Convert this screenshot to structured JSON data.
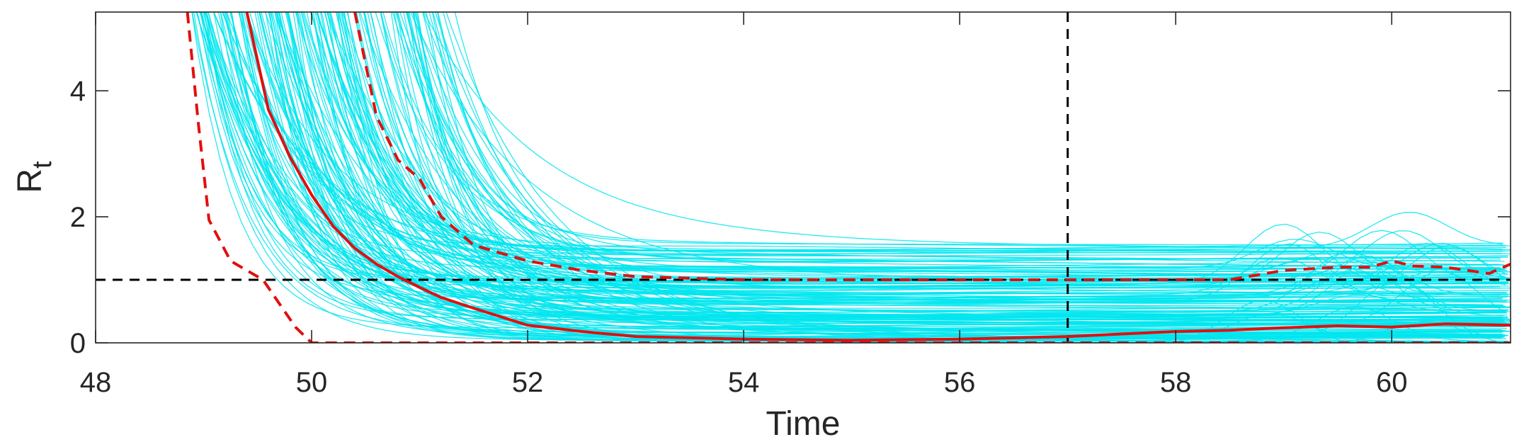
{
  "chart_data": {
    "type": "line",
    "title": "",
    "xlabel": "Time",
    "ylabel": "R",
    "ylabel_subscript": "t",
    "xlim": [
      48,
      61.1
    ],
    "ylim": [
      0,
      5.25
    ],
    "xticks": [
      48,
      50,
      52,
      54,
      56,
      58,
      60
    ],
    "yticks": [
      0,
      2,
      4
    ],
    "grid": false,
    "legend": "none",
    "colors": {
      "samples": "#00e5ee",
      "median": "#e01010",
      "bounds": "#e01010",
      "reference": "#000000",
      "axes": "#262626"
    },
    "reference_lines": {
      "horizontal_y": 1,
      "vertical_x": 57
    },
    "series": [
      {
        "role": "median",
        "style": "solid",
        "x": [
          49.4,
          49.6,
          49.8,
          50.0,
          50.2,
          50.4,
          50.6,
          50.8,
          51.0,
          51.2,
          51.5,
          52.0,
          52.5,
          53.0,
          54.0,
          55.0,
          56.0,
          57.0,
          57.5,
          58.0,
          58.5,
          59.0,
          59.5,
          60.0,
          60.5,
          61.1
        ],
        "y": [
          5.25,
          3.7,
          2.95,
          2.35,
          1.85,
          1.5,
          1.25,
          1.05,
          0.88,
          0.72,
          0.55,
          0.28,
          0.18,
          0.1,
          0.06,
          0.04,
          0.06,
          0.1,
          0.14,
          0.18,
          0.2,
          0.24,
          0.27,
          0.25,
          0.3,
          0.28
        ]
      },
      {
        "role": "upper-bound",
        "style": "dashed",
        "x": [
          50.4,
          50.6,
          50.8,
          51.0,
          51.2,
          51.5,
          52.0,
          52.5,
          53.0,
          54.0,
          55.0,
          56.0,
          57.0,
          58.0,
          58.5,
          59.0,
          59.5,
          59.8,
          60.0,
          60.2,
          60.5,
          60.9,
          61.1
        ],
        "y": [
          5.25,
          3.6,
          2.9,
          2.6,
          2.0,
          1.55,
          1.3,
          1.15,
          1.05,
          1.0,
          1.0,
          1.0,
          1.0,
          1.0,
          1.0,
          1.15,
          1.2,
          1.2,
          1.3,
          1.22,
          1.2,
          1.1,
          1.25
        ]
      },
      {
        "role": "lower-bound",
        "style": "dashed",
        "x": [
          48.85,
          48.95,
          49.05,
          49.25,
          49.55,
          49.85,
          50.0,
          50.2,
          52.0,
          54.0,
          56.0,
          58.0,
          60.0,
          61.1
        ],
        "y": [
          5.25,
          3.5,
          1.95,
          1.3,
          1.0,
          0.25,
          0.0,
          0.0,
          0.0,
          0.0,
          0.0,
          0.0,
          0.0,
          0.0
        ]
      }
    ],
    "samples": {
      "count": 180,
      "description_only": false,
      "seed": 7,
      "onset_range": [
        48.85,
        51.2
      ],
      "plateau_range": [
        0.02,
        1.6
      ]
    }
  }
}
